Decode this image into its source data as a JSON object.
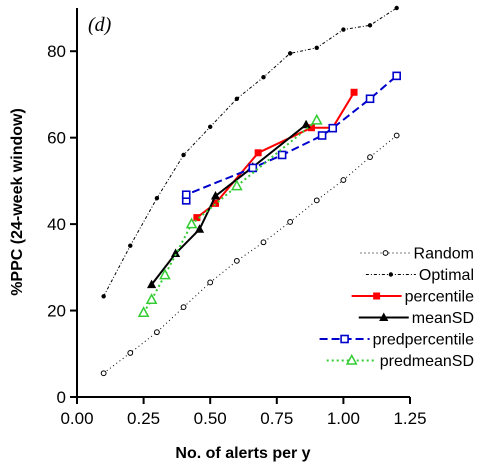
{
  "chart_data": {
    "type": "line",
    "panel_label": "(d)",
    "xlabel": "No. of alerts per y",
    "ylabel": "%PPC (24-week window)",
    "xlim": [
      0.0,
      1.25
    ],
    "ylim": [
      0,
      90
    ],
    "x_ticks": [
      "0.00",
      "0.25",
      "0.50",
      "0.75",
      "1.00",
      "1.25"
    ],
    "y_ticks": [
      "0",
      "20",
      "40",
      "60",
      "80"
    ],
    "legend_position": "bottom-right",
    "grid": false,
    "series": [
      {
        "name": "Random",
        "color": "#000000",
        "dash": "1,3",
        "marker": "open-circle",
        "points": [
          [
            0.1,
            5.5
          ],
          [
            0.2,
            10.2
          ],
          [
            0.3,
            15.0
          ],
          [
            0.4,
            20.8
          ],
          [
            0.5,
            26.5
          ],
          [
            0.6,
            31.5
          ],
          [
            0.7,
            35.8
          ],
          [
            0.8,
            40.5
          ],
          [
            0.9,
            45.5
          ],
          [
            1.0,
            50.2
          ],
          [
            1.1,
            55.5
          ],
          [
            1.2,
            60.5
          ]
        ]
      },
      {
        "name": "Optimal",
        "color": "#000000",
        "dash": "3,2,1,2",
        "marker": "filled-dot",
        "points": [
          [
            0.1,
            23.3
          ],
          [
            0.2,
            35.0
          ],
          [
            0.3,
            46.0
          ],
          [
            0.4,
            56.0
          ],
          [
            0.5,
            62.5
          ],
          [
            0.6,
            69.0
          ],
          [
            0.7,
            74.0
          ],
          [
            0.8,
            79.5
          ],
          [
            0.9,
            80.8
          ],
          [
            1.0,
            85.0
          ],
          [
            1.1,
            86.0
          ],
          [
            1.2,
            90.0
          ]
        ]
      },
      {
        "name": "percentile",
        "color": "#ff0000",
        "dash": "",
        "marker": "filled-square",
        "points": [
          [
            0.45,
            41.5
          ],
          [
            0.52,
            44.8
          ],
          [
            0.68,
            56.5
          ],
          [
            0.88,
            62.3
          ],
          [
            0.96,
            62.3
          ],
          [
            1.04,
            70.5
          ]
        ]
      },
      {
        "name": "meanSD",
        "color": "#000000",
        "dash": "",
        "marker": "filled-triangle",
        "points": [
          [
            0.28,
            26.0
          ],
          [
            0.37,
            33.2
          ],
          [
            0.46,
            38.8
          ],
          [
            0.52,
            46.5
          ],
          [
            0.66,
            53.2
          ],
          [
            0.86,
            63.0
          ]
        ]
      },
      {
        "name": "predpercentile",
        "color": "#0000cc",
        "dash": "8,4",
        "marker": "open-square",
        "points": [
          [
            0.41,
            45.5
          ],
          [
            0.41,
            46.8
          ],
          [
            0.66,
            53.0
          ],
          [
            0.77,
            56.0
          ],
          [
            0.92,
            60.5
          ],
          [
            0.96,
            62.2
          ],
          [
            1.1,
            69.0
          ],
          [
            1.2,
            74.3
          ]
        ]
      },
      {
        "name": "predmeanSD",
        "color": "#33cc33",
        "dash": "2,3",
        "marker": "open-triangle",
        "points": [
          [
            0.25,
            19.5
          ],
          [
            0.28,
            22.5
          ],
          [
            0.33,
            28.2
          ],
          [
            0.43,
            40.0
          ],
          [
            0.6,
            48.8
          ],
          [
            0.9,
            64.0
          ]
        ]
      }
    ]
  }
}
